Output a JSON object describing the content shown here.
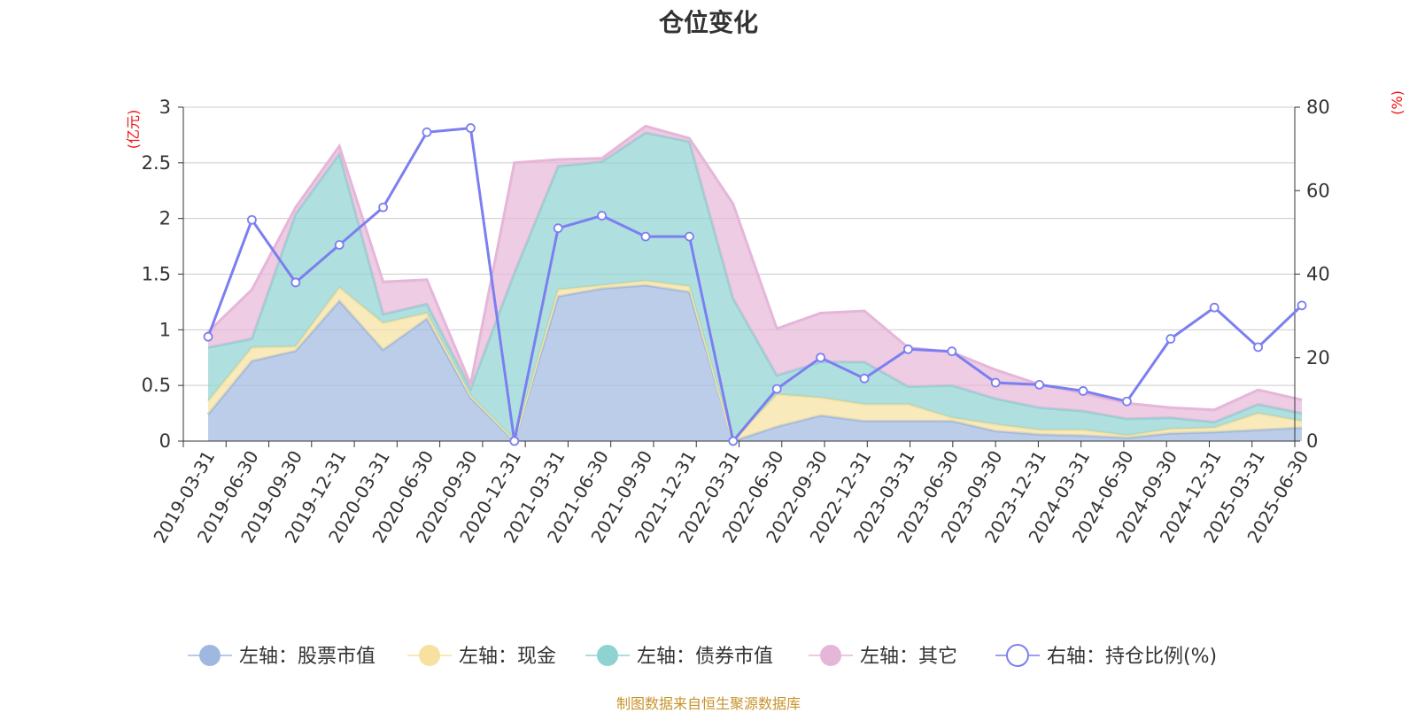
{
  "chart_data": {
    "type": "area",
    "title": "仓位变化",
    "left_unit": "(亿元)",
    "right_unit": "(%)",
    "left_ylim": [
      0,
      3
    ],
    "left_ticks": [
      "0",
      "0.5",
      "1",
      "1.5",
      "2",
      "2.5",
      "3"
    ],
    "right_ylim": [
      0,
      80
    ],
    "right_ticks": [
      "0",
      "20",
      "40",
      "60",
      "80"
    ],
    "grid": true,
    "legend_position": "bottom",
    "categories": [
      "2019-03-31",
      "2019-06-30",
      "2019-09-30",
      "2019-12-31",
      "2020-03-31",
      "2020-06-30",
      "2020-09-30",
      "2020-12-31",
      "2021-03-31",
      "2021-06-30",
      "2021-09-30",
      "2021-12-31",
      "2022-03-31",
      "2022-06-30",
      "2022-09-30",
      "2022-12-31",
      "2023-03-31",
      "2023-06-30",
      "2023-09-30",
      "2023-12-31",
      "2024-03-31",
      "2024-06-30",
      "2024-09-30",
      "2024-12-31",
      "2025-03-31",
      "2025-06-30"
    ],
    "series": [
      {
        "name": "左轴：股票市值",
        "axis": "left",
        "color": "#9fb8e0",
        "values": [
          0.24,
          0.72,
          0.81,
          1.26,
          0.82,
          1.1,
          0.39,
          0.0,
          1.3,
          1.37,
          1.4,
          1.34,
          0.0,
          0.13,
          0.23,
          0.18,
          0.18,
          0.18,
          0.09,
          0.06,
          0.05,
          0.03,
          0.07,
          0.08,
          0.1,
          0.12
        ]
      },
      {
        "name": "左轴：现金",
        "axis": "left",
        "color": "#f6e1a0",
        "values": [
          0.12,
          0.12,
          0.04,
          0.12,
          0.24,
          0.05,
          0.02,
          0.01,
          0.06,
          0.03,
          0.04,
          0.05,
          0.0,
          0.29,
          0.16,
          0.15,
          0.15,
          0.03,
          0.06,
          0.04,
          0.05,
          0.02,
          0.04,
          0.04,
          0.15,
          0.06
        ]
      },
      {
        "name": "左轴：债券市值",
        "axis": "left",
        "color": "#8fd2d2",
        "values": [
          0.48,
          0.08,
          1.19,
          1.2,
          0.08,
          0.08,
          0.06,
          1.5,
          1.11,
          1.11,
          1.33,
          1.3,
          1.28,
          0.17,
          0.32,
          0.38,
          0.16,
          0.29,
          0.23,
          0.2,
          0.17,
          0.15,
          0.1,
          0.05,
          0.08,
          0.07
        ]
      },
      {
        "name": "左轴：其它",
        "axis": "left",
        "color": "#e6b6d8",
        "values": [
          0.14,
          0.44,
          0.06,
          0.07,
          0.29,
          0.22,
          0.04,
          0.99,
          0.06,
          0.03,
          0.06,
          0.03,
          0.85,
          0.42,
          0.44,
          0.46,
          0.35,
          0.3,
          0.26,
          0.21,
          0.16,
          0.14,
          0.09,
          0.11,
          0.13,
          0.12
        ]
      },
      {
        "name": "右轴：持仓比例(%)",
        "axis": "right",
        "color": "#7b7ff0",
        "values": [
          25,
          53,
          38,
          47,
          56,
          74,
          75,
          0,
          51,
          54,
          49,
          49,
          0,
          12.5,
          20,
          15,
          22,
          21.5,
          14,
          13.5,
          12,
          9.5,
          24.5,
          32,
          22.5,
          32.5
        ]
      }
    ]
  },
  "source": "制图数据来自恒生聚源数据库"
}
